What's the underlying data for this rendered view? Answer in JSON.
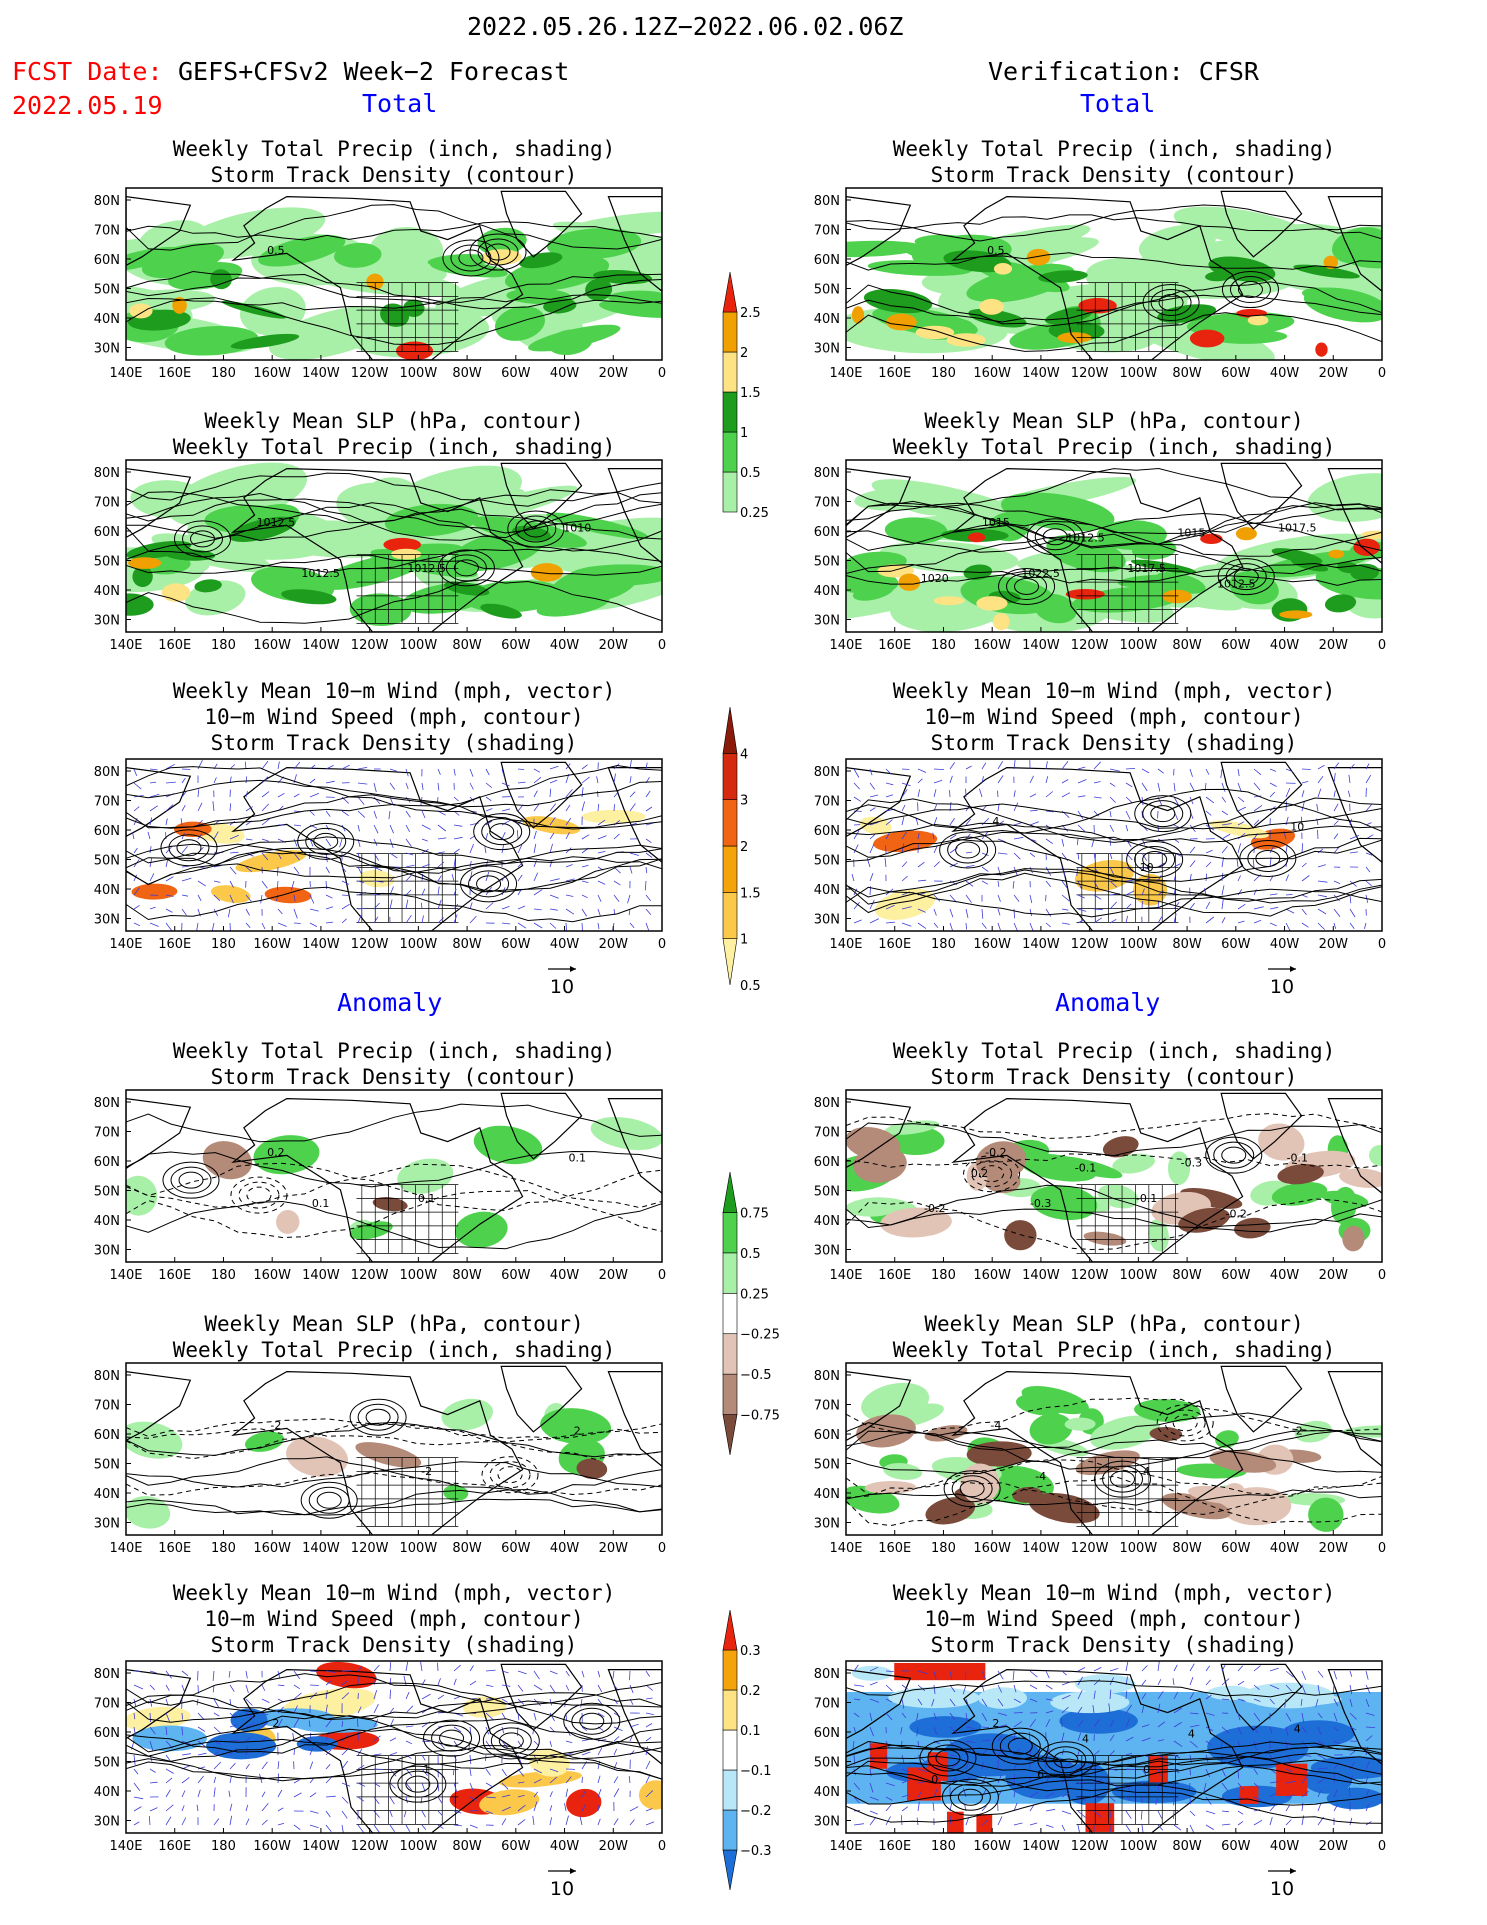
{
  "header": {
    "period": "2022.05.26.12Z−2022.06.02.06Z",
    "fcst_label": "FCST Date:",
    "fcst_model": "GEFS+CFSv2 Week−2 Forecast",
    "fcst_date": "2022.05.19",
    "verification": "Verification: CFSR"
  },
  "sections": {
    "total": "Total",
    "anomaly": "Anomaly"
  },
  "axes": {
    "lat_ticks": [
      "80N",
      "70N",
      "60N",
      "50N",
      "40N",
      "30N"
    ],
    "lon_ticks": [
      "140E",
      "160E",
      "180",
      "160W",
      "140W",
      "120W",
      "100W",
      "80W",
      "60W",
      "40W",
      "20W",
      "0"
    ]
  },
  "vector_ref": "10",
  "panels": [
    {
      "id": "fcst-total-precip",
      "t1": "Weekly Total Precip (inch, shading)",
      "t2": "Storm Track Density (contour)",
      "t3": "",
      "labels": [
        "0.5"
      ]
    },
    {
      "id": "fcst-total-slp",
      "t1": "Weekly Mean SLP (hPa, contour)",
      "t2": "Weekly Total Precip (inch, shading)",
      "t3": "",
      "labels": [
        "1012.5",
        "1012.5",
        "1010",
        "1012.5"
      ]
    },
    {
      "id": "fcst-total-wind",
      "t1": "Weekly Mean 10−m Wind (mph, vector)",
      "t2": "10−m Wind Speed (mph, contour)",
      "t3": "Storm Track Density (shading)",
      "labels": []
    },
    {
      "id": "cfsr-total-precip",
      "t1": "Weekly Total Precip (inch, shading)",
      "t2": "Storm Track Density (contour)",
      "t3": "",
      "labels": [
        "0.5"
      ]
    },
    {
      "id": "cfsr-total-slp",
      "t1": "Weekly Mean SLP (hPa, contour)",
      "t2": "Weekly Total Precip (inch, shading)",
      "t3": "",
      "labels": [
        "1015",
        "1017.5",
        "1017.5",
        "1022.5",
        "1015",
        "1020",
        "1012.5",
        "1012.5"
      ]
    },
    {
      "id": "cfsr-total-wind",
      "t1": "Weekly Mean 10−m Wind (mph, vector)",
      "t2": "10−m Wind Speed (mph, contour)",
      "t3": "Storm Track Density (shading)",
      "labels": [
        "4",
        "10",
        "10"
      ]
    },
    {
      "id": "fcst-anom-precip",
      "t1": "Weekly Total Precip (inch, shading)",
      "t2": "Storm Track Density (contour)",
      "t3": "",
      "labels": [
        "0.2",
        "0.1",
        "0.1",
        "0.1"
      ]
    },
    {
      "id": "fcst-anom-slp",
      "t1": "Weekly Mean SLP (hPa, contour)",
      "t2": "Weekly Total Precip (inch, shading)",
      "t3": "",
      "labels": [
        "-2",
        "-2",
        "2"
      ]
    },
    {
      "id": "fcst-anom-wind",
      "t1": "Weekly Mean 10−m Wind (mph, vector)",
      "t2": "10−m Wind Speed (mph, contour)",
      "t3": "Storm Track Density (shading)",
      "labels": [
        "2",
        "1"
      ]
    },
    {
      "id": "cfsr-anom-precip",
      "t1": "Weekly Total Precip (inch, shading)",
      "t2": "Storm Track Density (contour)",
      "t3": "",
      "labels": [
        "-0.2",
        "-0.1",
        "-0.1",
        "-0.3",
        "-0.3",
        "-0.2",
        "-0.1",
        "-0.2",
        "0.2"
      ]
    },
    {
      "id": "cfsr-anom-slp",
      "t1": "Weekly Mean SLP (hPa, contour)",
      "t2": "Weekly Total Precip (inch, shading)",
      "t3": "",
      "labels": [
        "-4",
        "4",
        "-2",
        "-4"
      ]
    },
    {
      "id": "cfsr-anom-wind",
      "t1": "Weekly Mean 10−m Wind (mph, vector)",
      "t2": "10−m Wind Speed (mph, contour)",
      "t3": "Storm Track Density (shading)",
      "labels": [
        "2",
        "0",
        "4",
        "6",
        "4",
        "0",
        "4"
      ]
    }
  ],
  "colorbars": {
    "precip_total": {
      "labels": [
        "2.5",
        "2",
        "1.5",
        "1",
        "0.5",
        "0.25"
      ],
      "colors": [
        "#e8230e",
        "#f0a000",
        "#fde383",
        "#1e9c1e",
        "#4ed24e",
        "#a8f0a8"
      ]
    },
    "storm_total": {
      "labels": [
        "4",
        "3",
        "2",
        "1.5",
        "1",
        "0.5"
      ],
      "colors": [
        "#8c1a0a",
        "#d62a10",
        "#f06414",
        "#f5a30a",
        "#fbc84a",
        "#fdf0a0"
      ]
    },
    "precip_anom": {
      "labels": [
        "0.75",
        "0.5",
        "0.25",
        "−0.25",
        "−0.5",
        "−0.75"
      ],
      "colors": [
        "#1e9c1e",
        "#4ed24e",
        "#a8f0a8",
        "#ffffff",
        "#e2c4b6",
        "#b48a78",
        "#7a4a3a"
      ]
    },
    "storm_anom": {
      "labels": [
        "0.3",
        "0.2",
        "0.1",
        "−0.1",
        "−0.2",
        "−0.3"
      ],
      "colors": [
        "#e8230e",
        "#f5a30a",
        "#fde383",
        "#ffffff",
        "#b8e8f8",
        "#5eb4f0",
        "#1e6ed8"
      ]
    }
  }
}
